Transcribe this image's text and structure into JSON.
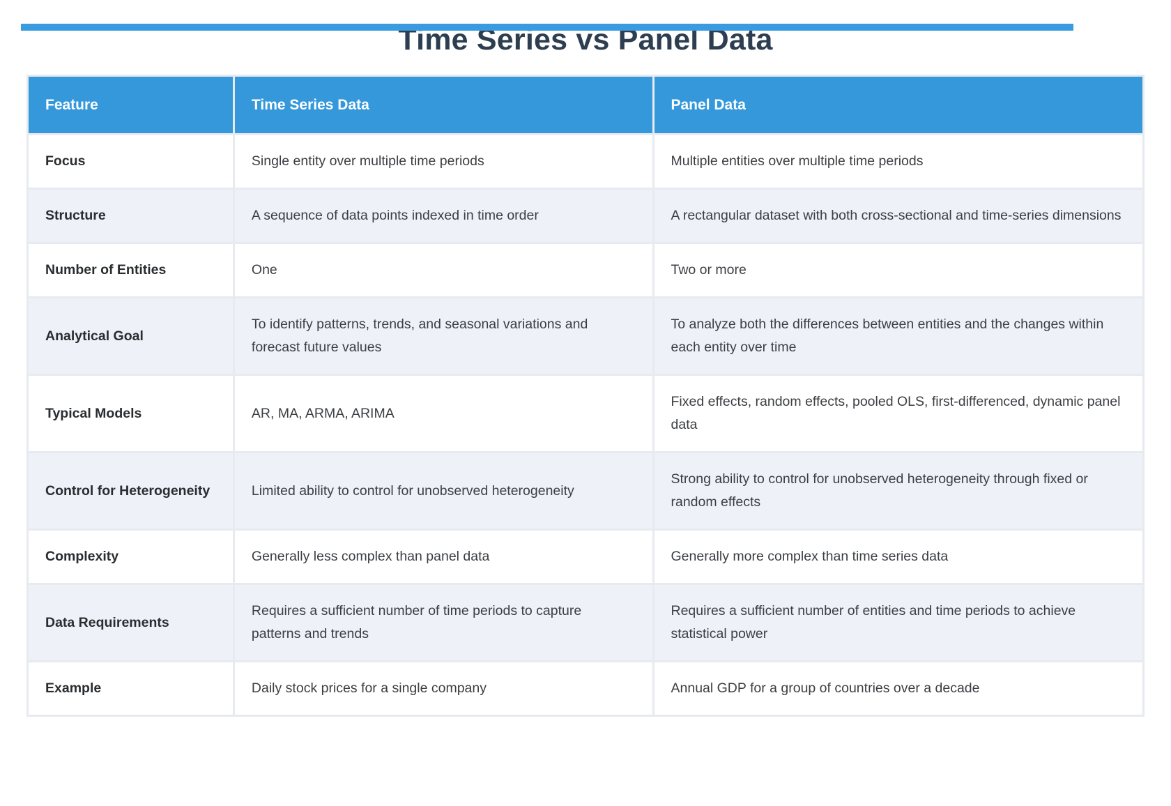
{
  "accent": {
    "header_blue": "#3498db",
    "top_bar_blue": "#3b9be1",
    "title_color": "#2d3e50",
    "alt_row_bg": "#eef2f8",
    "row_bg": "#ffffff",
    "body_text": "#3b3e42",
    "grid_gap": "#e7eaee",
    "header_text": "#ffffff"
  },
  "chart_data": {
    "type": "table",
    "title": "Time Series vs Panel Data",
    "columns": [
      "Feature",
      "Time Series Data",
      "Panel Data"
    ],
    "rows": [
      [
        "Focus",
        "Single entity over multiple time periods",
        "Multiple entities over multiple time periods"
      ],
      [
        "Structure",
        "A sequence of data points indexed in time order",
        "A rectangular dataset with both cross-sectional and time-series dimensions"
      ],
      [
        "Number of Entities",
        "One",
        "Two or more"
      ],
      [
        "Analytical Goal",
        "To identify patterns, trends, and seasonal variations and forecast future values",
        "To analyze both the differences between entities and the changes within each entity over time"
      ],
      [
        "Typical Models",
        "AR, MA, ARMA, ARIMA",
        "Fixed effects, random effects, pooled OLS, first-differenced, dynamic panel data"
      ],
      [
        "Control for Heterogeneity",
        "Limited ability to control for unobserved heterogeneity",
        "Strong ability to control for unobserved heterogeneity through fixed or random effects"
      ],
      [
        "Complexity",
        "Generally less complex than panel data",
        "Generally more complex than time series data"
      ],
      [
        "Data Requirements",
        "Requires a sufficient number of time periods to capture patterns and trends",
        "Requires a sufficient number of entities and time periods to achieve statistical power"
      ],
      [
        "Example",
        "Daily stock prices for a single company",
        "Annual GDP for a group of countries over a decade"
      ]
    ],
    "layout": {
      "legend": "none",
      "grid": "separated-cells",
      "header_position": "top"
    }
  }
}
